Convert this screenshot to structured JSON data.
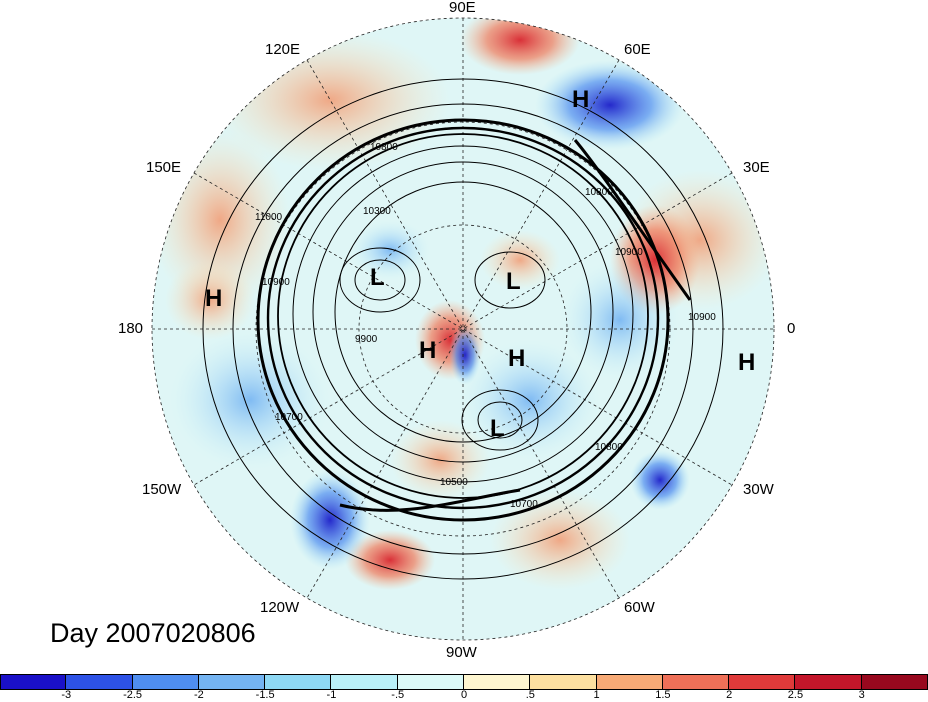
{
  "title": "Day 2007020806",
  "longitude_labels": {
    "deg90e": "90E",
    "deg60e": "60E",
    "deg120e": "120E",
    "deg150e": "150E",
    "deg30e": "30E",
    "deg180": "180",
    "deg0": "0",
    "deg150w": "150W",
    "deg30w": "30W",
    "deg120w": "120W",
    "deg60w": "60W",
    "deg90w": "90W"
  },
  "pressure_systems": [
    {
      "label": "H"
    },
    {
      "label": "L"
    },
    {
      "label": "L"
    },
    {
      "label": "H"
    },
    {
      "label": "H"
    },
    {
      "label": "L"
    },
    {
      "label": "H"
    },
    {
      "label": "H"
    }
  ],
  "contour_labels": [
    "10800",
    "10300",
    "10900",
    "11000",
    "9900",
    "10700",
    "10500",
    "10700",
    "10800",
    "10800",
    "10900",
    "10900"
  ],
  "colorbar": {
    "labels": [
      "-3",
      "-2.5",
      "-2",
      "-1.5",
      "-1",
      "-.5",
      "0",
      ".5",
      "1",
      "1.5",
      "2",
      "2.5",
      "3"
    ],
    "colors": [
      "#1a10c8",
      "#2d52e6",
      "#4f8ef0",
      "#74b4f2",
      "#8ed8f4",
      "#b9f0f8",
      "#dcfaf8",
      "#fef6d0",
      "#fde0a0",
      "#f7aa76",
      "#ef7058",
      "#e03a3a",
      "#c4162a",
      "#98081e"
    ]
  }
}
